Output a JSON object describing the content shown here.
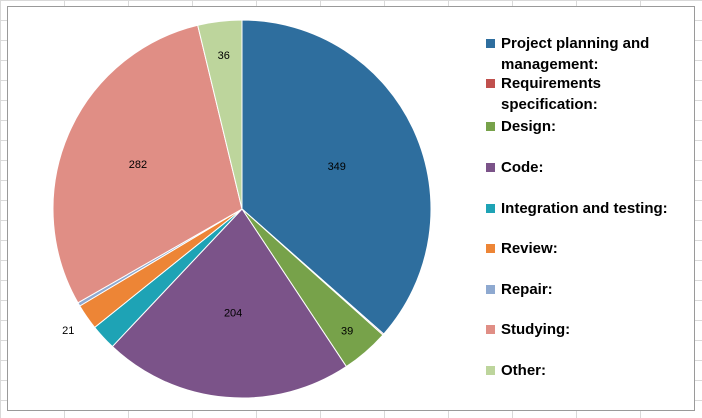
{
  "chart_data": {
    "type": "pie",
    "categories": [
      "Project planning and management:",
      "Requirements specification:",
      "Design:",
      "Code:",
      "Integration and testing:",
      "Review:",
      "Repair:",
      "Studying:",
      "Other:"
    ],
    "values": [
      349,
      1,
      39,
      204,
      21,
      21,
      3,
      282,
      36
    ],
    "data_labels": [
      "349",
      "",
      "39",
      "204",
      "",
      "21",
      "",
      "282",
      "36"
    ],
    "colors": [
      "#2e6e9e",
      "#c0504d",
      "#77a24a",
      "#7b5389",
      "#1ea3b5",
      "#ed8536",
      "#8ea9d0",
      "#e08e85",
      "#bdd59c"
    ],
    "legend_position": "right",
    "title": ""
  }
}
